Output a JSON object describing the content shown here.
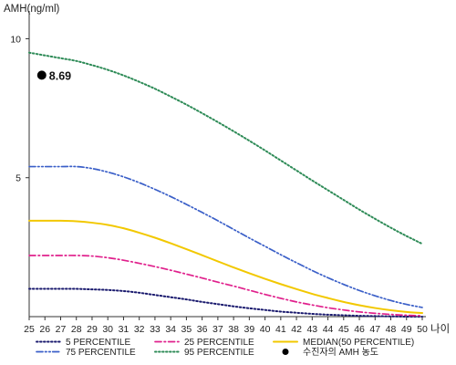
{
  "chart_data": {
    "type": "line",
    "ylabel": "AMH(ng/ml)",
    "xlabel": "나이",
    "x": [
      25,
      26,
      27,
      28,
      29,
      30,
      31,
      32,
      33,
      34,
      35,
      36,
      37,
      38,
      39,
      40,
      41,
      42,
      43,
      44,
      45,
      46,
      47,
      48,
      49,
      50
    ],
    "xlim": [
      25,
      50
    ],
    "ylim": [
      0,
      11
    ],
    "yticks": [
      5,
      10
    ],
    "grid": false,
    "legend_position": "bottom",
    "series": [
      {
        "name": "5 PERCENTILE",
        "style": "dotted",
        "color": "#1a1a6e",
        "values": [
          1.0,
          1.0,
          1.0,
          1.0,
          0.98,
          0.96,
          0.92,
          0.86,
          0.78,
          0.7,
          0.62,
          0.53,
          0.45,
          0.37,
          0.3,
          0.24,
          0.18,
          0.14,
          0.1,
          0.07,
          0.05,
          0.03,
          0.02,
          0.01,
          0.0,
          0.0
        ]
      },
      {
        "name": "25 PERCENTILE",
        "style": "dash-dot",
        "color": "#e0208c",
        "values": [
          2.2,
          2.2,
          2.2,
          2.2,
          2.18,
          2.12,
          2.03,
          1.92,
          1.8,
          1.67,
          1.53,
          1.39,
          1.24,
          1.1,
          0.95,
          0.8,
          0.66,
          0.53,
          0.42,
          0.32,
          0.24,
          0.17,
          0.12,
          0.08,
          0.05,
          0.03
        ]
      },
      {
        "name": "MEDIAN(50 PERCENTILE)",
        "style": "solid",
        "color": "#f2c800",
        "values": [
          3.45,
          3.45,
          3.45,
          3.43,
          3.38,
          3.3,
          3.18,
          3.02,
          2.84,
          2.64,
          2.43,
          2.21,
          1.99,
          1.77,
          1.56,
          1.36,
          1.17,
          0.99,
          0.82,
          0.67,
          0.53,
          0.41,
          0.31,
          0.23,
          0.17,
          0.13
        ]
      },
      {
        "name": "75 PERCENTILE",
        "style": "dash-dot-dot",
        "color": "#3a5fc8",
        "values": [
          5.4,
          5.4,
          5.4,
          5.4,
          5.33,
          5.2,
          5.03,
          4.82,
          4.58,
          4.32,
          4.04,
          3.75,
          3.45,
          3.14,
          2.83,
          2.53,
          2.23,
          1.94,
          1.66,
          1.4,
          1.16,
          0.94,
          0.75,
          0.58,
          0.44,
          0.33
        ]
      },
      {
        "name": "95 PERCENTILE",
        "style": "dotted",
        "color": "#2e8b57",
        "values": [
          9.5,
          9.4,
          9.3,
          9.2,
          9.05,
          8.88,
          8.68,
          8.45,
          8.2,
          7.92,
          7.63,
          7.32,
          7.0,
          6.67,
          6.33,
          5.98,
          5.62,
          5.26,
          4.9,
          4.55,
          4.2,
          3.85,
          3.52,
          3.2,
          2.9,
          2.62
        ]
      }
    ],
    "marker": {
      "label": "수진자의 AMH 농도",
      "x": 25.8,
      "y": 8.69,
      "value_label": "8.69",
      "color": "#000000"
    }
  }
}
